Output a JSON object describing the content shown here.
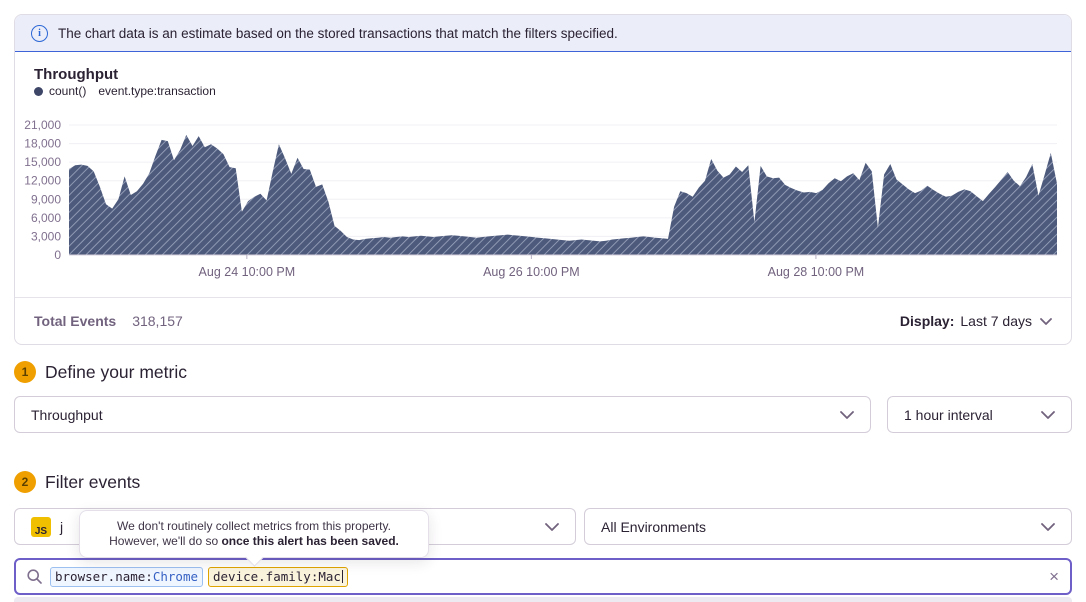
{
  "banner": {
    "text": "The chart data is an estimate based on the stored transactions that match the filters specified."
  },
  "chart": {
    "title": "Throughput",
    "legend_series": "count()",
    "legend_filter": "event.type:transaction"
  },
  "chart_data": {
    "type": "area",
    "title": "Throughput",
    "ylabel": "",
    "xlabel": "",
    "ylim": [
      0,
      21000
    ],
    "yticks": [
      0,
      3000,
      6000,
      9000,
      12000,
      15000,
      18000,
      21000
    ],
    "ytick_labels": [
      "0",
      "3,000",
      "6,000",
      "9,000",
      "12,000",
      "15,000",
      "18,000",
      "21,000"
    ],
    "xticks": [
      {
        "label": "Aug 24 10:00 PM",
        "pos": 0.18
      },
      {
        "label": "Aug 26 10:00 PM",
        "pos": 0.468
      },
      {
        "label": "Aug 28 10:00 PM",
        "pos": 0.756
      }
    ],
    "grid": "horizontal",
    "legend_position": "top-left",
    "fill_style": "diagonal-hatch",
    "colors": {
      "area_base": "#4d5a7c",
      "area_hatch": "#9ba4bc"
    },
    "series": [
      {
        "name": "count()",
        "filter": "event.type:transaction",
        "values": [
          13900,
          14500,
          14600,
          14400,
          13500,
          11000,
          8200,
          7500,
          9000,
          12700,
          9700,
          10300,
          11500,
          13200,
          16000,
          18600,
          18400,
          15300,
          17000,
          19400,
          17600,
          19200,
          17400,
          17900,
          17200,
          16300,
          14200,
          14000,
          7000,
          8700,
          9400,
          9900,
          8800,
          13500,
          17900,
          15600,
          13100,
          15700,
          13900,
          13800,
          11000,
          11400,
          8600,
          4700,
          3900,
          2900,
          2500,
          2400,
          2600,
          2700,
          2800,
          2900,
          2800,
          2900,
          3000,
          2900,
          3000,
          3100,
          3000,
          2900,
          3000,
          3100,
          3200,
          3100,
          3000,
          2900,
          2800,
          2900,
          3000,
          3100,
          3200,
          3300,
          3200,
          3100,
          3000,
          2900,
          2800,
          2700,
          2600,
          2500,
          2400,
          2300,
          2400,
          2500,
          2400,
          2300,
          2200,
          2300,
          2500,
          2600,
          2700,
          2800,
          2900,
          3000,
          2900,
          2800,
          2700,
          2600,
          7800,
          10300,
          10000,
          9400,
          10900,
          12000,
          15500,
          13600,
          12500,
          13000,
          14300,
          13400,
          14500,
          5300,
          14400,
          12700,
          12400,
          12500,
          11300,
          10800,
          10400,
          10100,
          10200,
          10000,
          10500,
          11600,
          12400,
          11900,
          12700,
          13200,
          12100,
          14900,
          13500,
          4400,
          13000,
          14700,
          12200,
          11400,
          10600,
          10000,
          10400,
          11200,
          10500,
          9900,
          9400,
          9600,
          10200,
          10600,
          10300,
          9500,
          8700,
          9900,
          11000,
          12200,
          13400,
          12000,
          11100,
          12600,
          14700,
          9600,
          13000,
          16500,
          11500
        ]
      }
    ]
  },
  "footer": {
    "total_events_label": "Total Events",
    "total_events_value": "318,157",
    "display_label": "Display:",
    "display_value": "Last 7 days"
  },
  "steps": {
    "metric_number": "1",
    "metric_title": "Define your metric",
    "filter_number": "2",
    "filter_title": "Filter events"
  },
  "metric": {
    "selected": "Throughput",
    "interval": "1 hour interval"
  },
  "filter": {
    "project_platform_badge": "JS",
    "project_name_visible": "j",
    "environment": "All Environments"
  },
  "tooltip": {
    "line1": "We don't routinely collect metrics from this property.",
    "line2_normal": "However, we'll do so ",
    "line2_bold": "once this alert has been saved."
  },
  "search": {
    "tokens": [
      {
        "key": "browser.name:",
        "value": "Chrome"
      },
      {
        "key": "device.family:",
        "value": "Mac"
      }
    ]
  },
  "icons": {
    "info": "i",
    "close": "×"
  },
  "colors": {
    "banner_bg": "#ebedf9",
    "banner_blue": "#3e63d8",
    "focus_purple": "#6d5fc7",
    "step_badge_orange": "#efa000",
    "js_yellow": "#f0c000",
    "token_blue_border": "#9cc0f0",
    "token_yellow_border": "#dfa400",
    "area_base": "#4d5a7c"
  }
}
